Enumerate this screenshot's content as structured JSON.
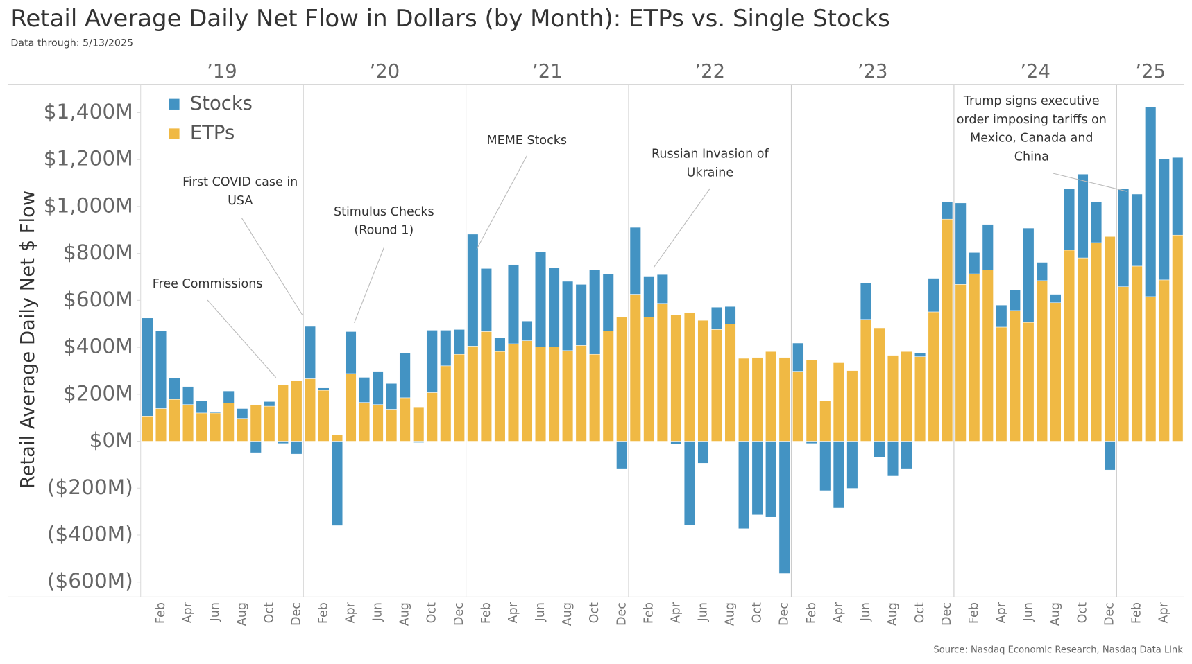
{
  "chart_data": {
    "type": "bar",
    "stacked": true,
    "title": "Retail Average Daily Net Flow in Dollars (by Month): ETPs vs. Single Stocks",
    "subtitle": "Data through: 5/13/2025",
    "source": "Source: Nasdaq Economic Research, Nasdaq Data Link",
    "y_label": "Retail Average Daily Net $ Flow",
    "years": [
      "’19",
      "’20",
      "’21",
      "’22",
      "’23",
      "’24",
      "’25"
    ],
    "categories": [
      null,
      "Feb",
      null,
      "Apr",
      null,
      "Jun",
      null,
      "Aug",
      null,
      "Oct",
      null,
      "Dec",
      null,
      "Feb",
      null,
      "Apr",
      null,
      "Jun",
      null,
      "Aug",
      null,
      "Oct",
      null,
      "Dec",
      null,
      "Feb",
      null,
      "Apr",
      null,
      "Jun",
      null,
      "Aug",
      null,
      "Oct",
      null,
      "Dec",
      null,
      "Feb",
      null,
      "Apr",
      null,
      "Jun",
      null,
      "Aug",
      null,
      "Oct",
      null,
      "Dec",
      null,
      "Feb",
      null,
      "Apr",
      null,
      "Jun",
      null,
      "Aug",
      null,
      "Oct",
      null,
      "Dec",
      null,
      "Feb",
      null,
      "Apr",
      null,
      "Jun",
      null,
      "Aug",
      null,
      "Oct",
      null,
      "Dec",
      null,
      "Feb",
      null,
      "Apr",
      null
    ],
    "series": [
      {
        "name": "ETPs",
        "color": "#f0b944",
        "values": [
          107,
          139,
          178,
          156,
          120,
          120,
          162,
          97,
          156,
          149,
          240,
          259,
          266,
          217,
          29,
          288,
          165,
          156,
          136,
          185,
          146,
          207,
          321,
          370,
          405,
          467,
          382,
          415,
          428,
          402,
          402,
          386,
          408,
          370,
          470,
          528,
          626,
          528,
          587,
          538,
          548,
          515,
          476,
          499,
          353,
          357,
          382,
          357,
          298,
          347,
          172,
          334,
          301,
          519,
          483,
          366,
          382,
          360,
          551,
          946,
          668,
          713,
          729,
          486,
          557,
          506,
          684,
          590,
          814,
          781,
          846,
          872,
          658,
          746,
          616,
          687,
          878
        ]
      },
      {
        "name": "Stocks",
        "color": "#4393c3",
        "values": [
          418,
          331,
          91,
          77,
          52,
          5,
          52,
          42,
          -49,
          20,
          -10,
          -55,
          223,
          10,
          -360,
          179,
          107,
          142,
          110,
          191,
          -6,
          266,
          152,
          106,
          477,
          269,
          59,
          337,
          84,
          405,
          337,
          295,
          260,
          359,
          243,
          -117,
          285,
          175,
          123,
          -13,
          -357,
          -94,
          95,
          75,
          -373,
          -314,
          -324,
          -564,
          120,
          -10,
          -211,
          -285,
          -201,
          155,
          -68,
          -149,
          -117,
          16,
          143,
          75,
          347,
          91,
          195,
          94,
          88,
          402,
          78,
          36,
          262,
          357,
          175,
          -123,
          418,
          307,
          807,
          516,
          331
        ]
      }
    ],
    "legend_order": [
      "Stocks",
      "ETPs"
    ],
    "legend": "top-left",
    "ylim": [
      -664,
      1520
    ],
    "yticks": [
      {
        "value": -600,
        "label": "($600M)"
      },
      {
        "value": -400,
        "label": "($400M)"
      },
      {
        "value": -200,
        "label": "($200M)"
      },
      {
        "value": 0,
        "label": "$0M"
      },
      {
        "value": 200,
        "label": "$200M"
      },
      {
        "value": 400,
        "label": "$400M"
      },
      {
        "value": 600,
        "label": "$600M"
      },
      {
        "value": 800,
        "label": "$800M"
      },
      {
        "value": 1000,
        "label": "$1,000M"
      },
      {
        "value": 1200,
        "label": "$1,200M"
      },
      {
        "value": 1400,
        "label": "$1,400M"
      }
    ],
    "annotations": [
      [
        "Free Commissions"
      ],
      [
        "First COVID case in",
        "USA"
      ],
      [
        "Stimulus Checks",
        "(Round 1)"
      ],
      [
        "MEME Stocks"
      ],
      [
        "Russian Invasion of",
        "Ukraine"
      ],
      [
        "Trump signs executive",
        "order imposing tariffs on",
        "Mexico, Canada and",
        "China"
      ]
    ]
  }
}
